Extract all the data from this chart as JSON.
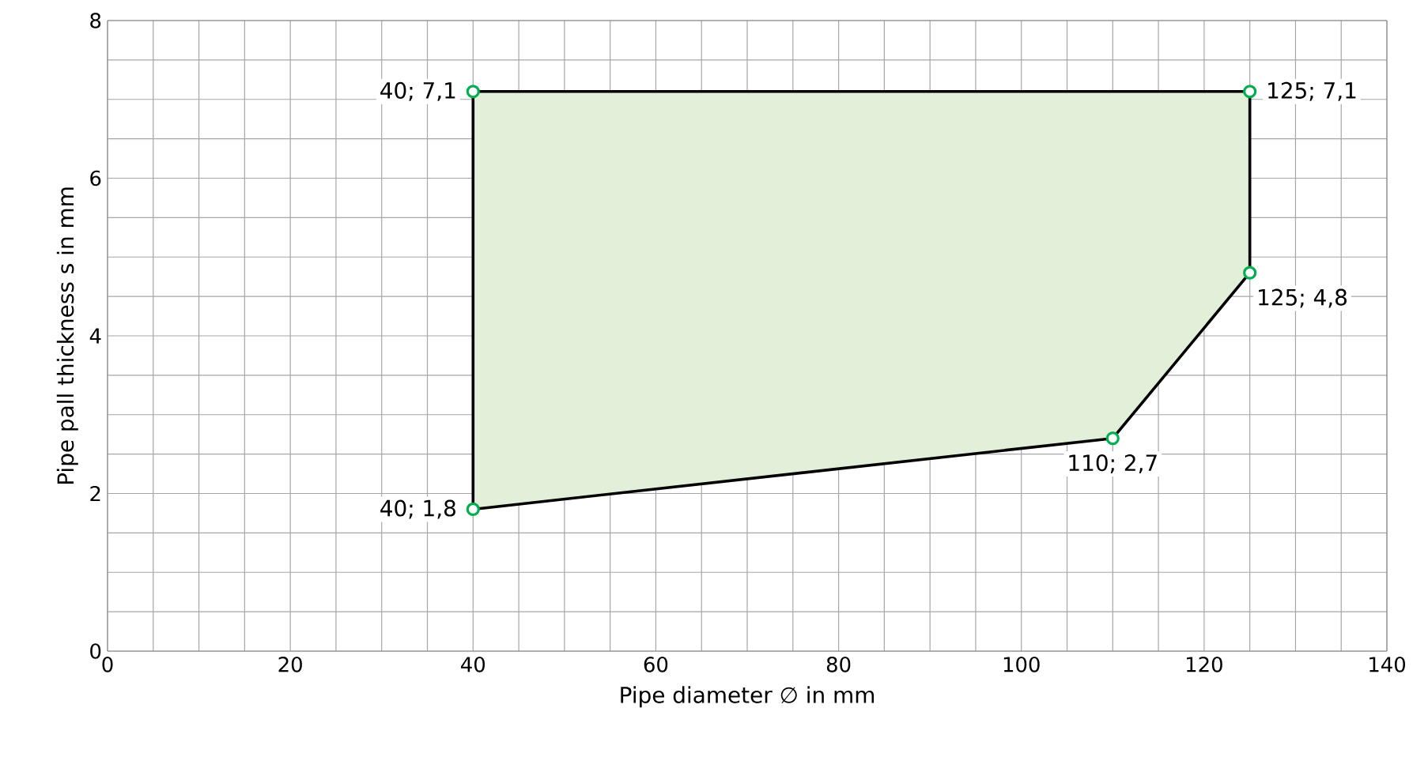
{
  "chart_data": {
    "type": "area",
    "xlabel": "Pipe diameter ∅ in mm",
    "ylabel": "Pipe pall thickness s in mm",
    "xlim": [
      0,
      140
    ],
    "ylim": [
      0,
      8
    ],
    "xticks": [
      0,
      20,
      40,
      60,
      80,
      100,
      120,
      140
    ],
    "yticks": [
      0,
      2,
      4,
      6,
      8
    ],
    "grid": true,
    "marker": "circle",
    "series": [
      {
        "color": "#e2f0d9",
        "x": [
          40,
          40,
          125,
          125,
          110
        ],
        "values": [
          1.8,
          7.1,
          7.1,
          4.8,
          2.7
        ],
        "value_labels": [
          "40; 1,8",
          "40; 7,1",
          "125; 7,1",
          "125; 4,8",
          "110; 2,7"
        ]
      }
    ]
  }
}
